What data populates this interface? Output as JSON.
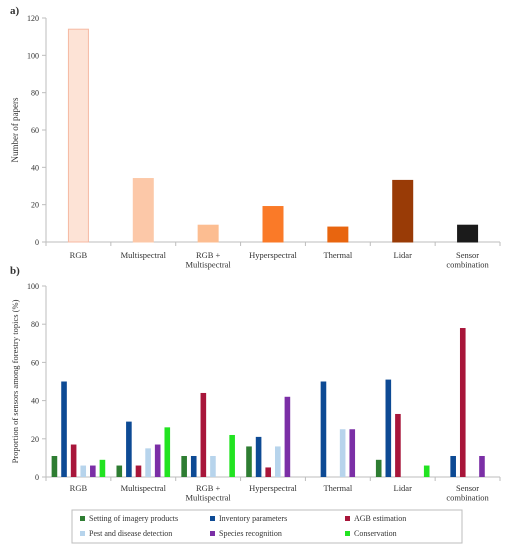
{
  "panel_a_label": "a)",
  "panel_b_label": "b)",
  "chart_data": [
    {
      "type": "bar",
      "title": "",
      "xlabel": "",
      "ylabel": "Number of papers",
      "ylim": [
        0,
        120
      ],
      "yticks": [
        0,
        20,
        40,
        60,
        80,
        100,
        120
      ],
      "grid": false,
      "categories": [
        "RGB",
        "Multispectral",
        "RGB + Multispectral",
        "Hyperspectral",
        "Thermal",
        "Lidar",
        "Sensor combination"
      ],
      "values": [
        114,
        34,
        9,
        19,
        8,
        33,
        9
      ],
      "colors": [
        "#fde3d6",
        "#fcc8a8",
        "#fcbd91",
        "#fa7a28",
        "#e8650f",
        "#993b06",
        "#1b1b1b"
      ],
      "edge_colors": [
        "#f6b9a3",
        "#fcc8a8",
        "#fcbd91",
        "#fa7a28",
        "#e8650f",
        "#993b06",
        "#1b1b1b"
      ]
    },
    {
      "type": "bar",
      "title": "",
      "xlabel": "",
      "ylabel": "Proportion of sensors among forestry topics (%)",
      "ylim": [
        0,
        100
      ],
      "yticks": [
        0,
        20,
        40,
        60,
        80,
        100
      ],
      "grid": false,
      "legend_position": "bottom",
      "categories": [
        "RGB",
        "Multispectral",
        "RGB + Multispectral",
        "Hyperspectral",
        "Thermal",
        "Lidar",
        "Sensor combination"
      ],
      "series": [
        {
          "name": "Setting of imagery products",
          "color": "#2e7d32",
          "values": [
            11,
            6,
            11,
            16,
            0,
            9,
            0
          ]
        },
        {
          "name": "Inventory parameters",
          "color": "#0d4a94",
          "values": [
            50,
            29,
            11,
            21,
            50,
            51,
            11
          ]
        },
        {
          "name": "AGB estimation",
          "color": "#a8163a",
          "values": [
            17,
            6,
            44,
            5,
            0,
            33,
            78
          ]
        },
        {
          "name": "Pest and disease detection",
          "color": "#b7d4ec",
          "values": [
            6,
            15,
            11,
            16,
            25,
            0,
            0
          ]
        },
        {
          "name": "Species recognition",
          "color": "#7b2fa6",
          "values": [
            6,
            17,
            0,
            42,
            25,
            0,
            11
          ]
        },
        {
          "name": "Conservation",
          "color": "#22e321",
          "values": [
            9,
            26,
            22,
            0,
            0,
            6,
            0
          ]
        }
      ]
    }
  ]
}
